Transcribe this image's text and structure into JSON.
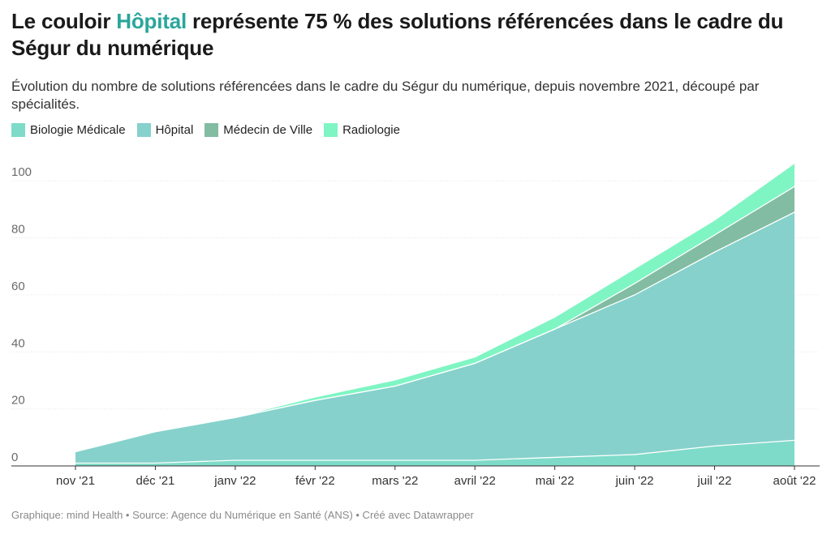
{
  "header": {
    "title_before": "Le couloir ",
    "title_highlight": "Hôpital",
    "title_after": " représente 75 % des solutions référencées dans le cadre du Ségur du numérique",
    "subtitle": "Évolution du nombre de solutions référencées dans le cadre du Ségur du numérique, depuis novembre 2021, découpé par spécialités."
  },
  "footer": {
    "text": "Graphique: mind Health • Source: Agence du Numérique en Santé (ANS) • Créé avec Datawrapper"
  },
  "chart_data": {
    "type": "area",
    "stacked": true,
    "x": [
      "nov '21",
      "déc '21",
      "janv '22",
      "févr '22",
      "mars '22",
      "avril '22",
      "mai '22",
      "juin '22",
      "juil '22",
      "août '22"
    ],
    "ylim": [
      0,
      110
    ],
    "yticks": [
      0,
      20,
      40,
      60,
      80,
      100
    ],
    "grid": true,
    "legend_position": "top-left",
    "series": [
      {
        "name": "Biologie Médicale",
        "color": "#7fdbc9",
        "values": [
          1,
          1,
          2,
          2,
          2,
          2,
          3,
          4,
          7,
          9
        ]
      },
      {
        "name": "Hôpital",
        "color": "#86d1cc",
        "values": [
          4,
          11,
          15,
          21,
          26,
          34,
          45,
          56,
          68,
          80
        ]
      },
      {
        "name": "Médecin de Ville",
        "color": "#82bca2",
        "values": [
          0,
          0,
          0,
          0,
          0,
          0,
          0,
          4,
          6,
          9
        ]
      },
      {
        "name": "Radiologie",
        "color": "#7ff5c3",
        "values": [
          0,
          0,
          0,
          1,
          2,
          2,
          4,
          5,
          5,
          8
        ]
      }
    ]
  }
}
